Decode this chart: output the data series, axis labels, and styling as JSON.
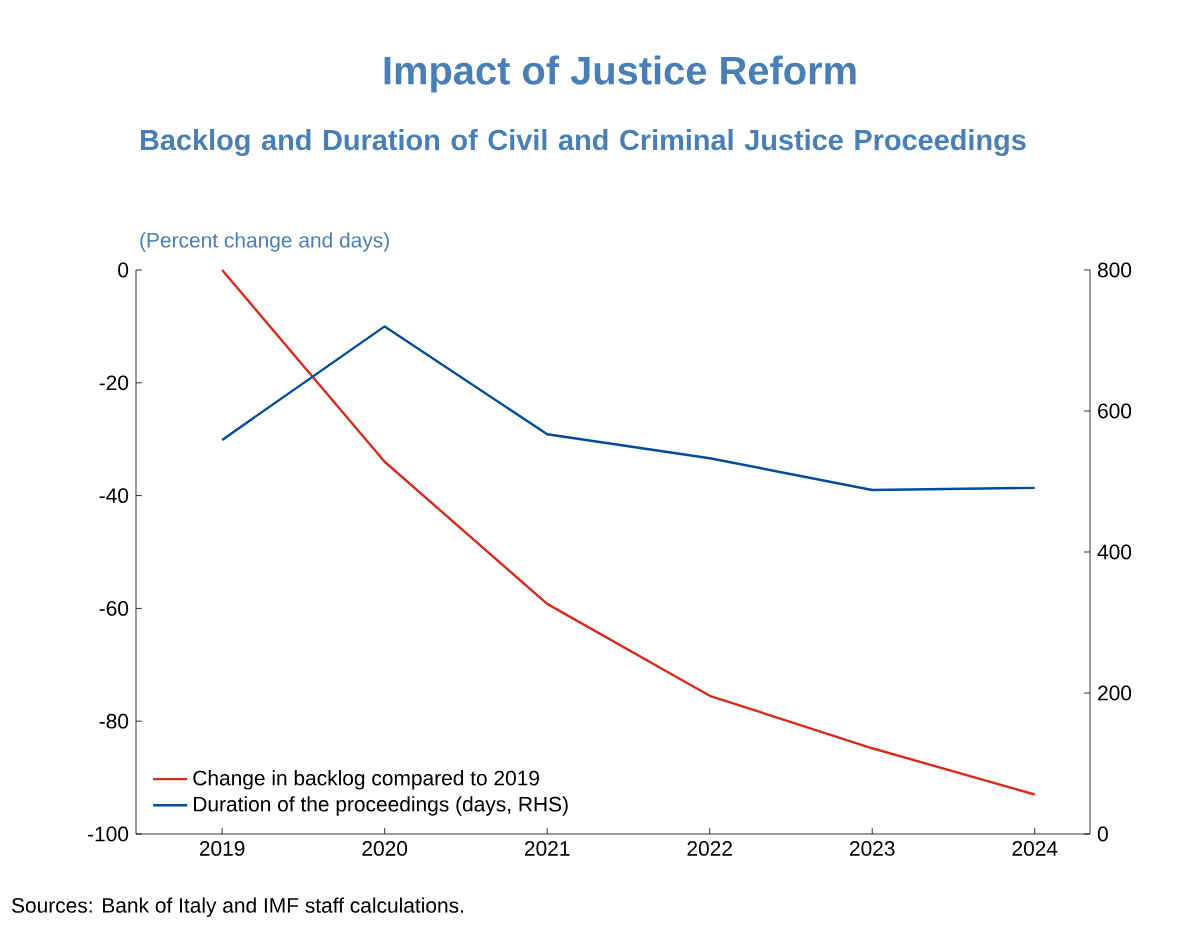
{
  "chart_data": {
    "type": "line",
    "title": "Impact of Justice Reform",
    "subtitle": "Backlog and Duration of Civil and Criminal Justice Proceedings",
    "ylabel": "(Percent change and days)",
    "annotations": [
      "Sources: Bank of Italy and IMF staff calculations."
    ],
    "categories": [
      "2019",
      "2020",
      "2021",
      "2022",
      "2023",
      "2024"
    ],
    "series": [
      {
        "name": "Change in backlog compared to 2019",
        "color": "#d62b1f",
        "values": [
          0,
          -34,
          -59.2,
          -75.5,
          -84.8,
          -93
        ]
      },
      {
        "name": "Duration of the proceedings (days, RHS)",
        "color": "#004c97",
        "axis": "y2",
        "values": [
          559,
          720,
          567,
          533,
          488,
          491
        ]
      }
    ],
    "ylim": [
      -100,
      0
    ],
    "yticks": [
      -100,
      -80,
      -60,
      -40,
      -20,
      0
    ],
    "y2lim": [
      0,
      800
    ],
    "y2ticks": [
      0,
      200,
      400,
      600,
      800
    ],
    "legend": "bottom left",
    "grid": false,
    "marker": "none",
    "line_style": "solid"
  }
}
